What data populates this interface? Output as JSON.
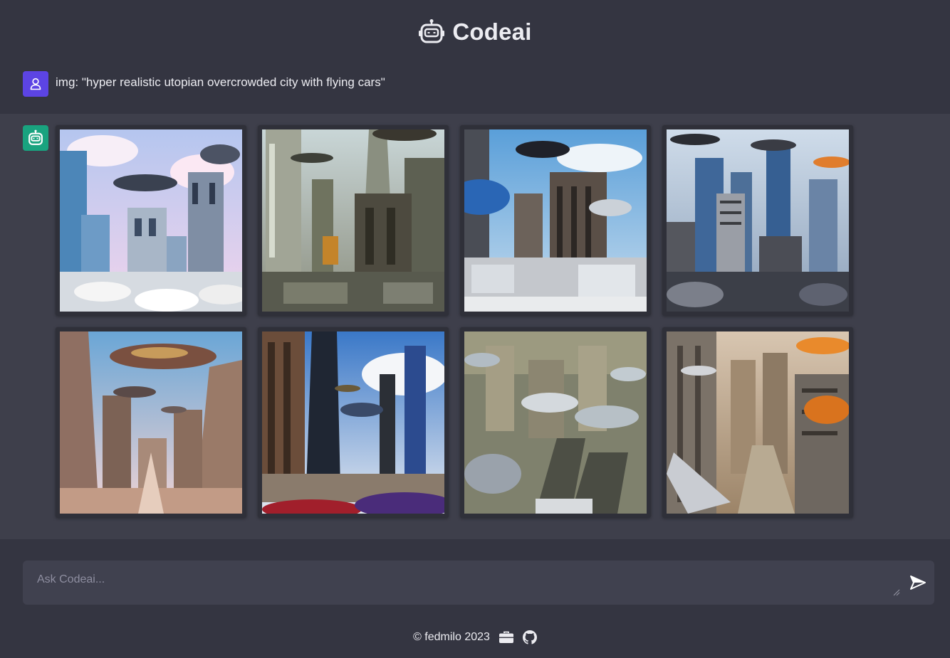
{
  "header": {
    "title": "Codeai",
    "logo_icon": "robot-icon"
  },
  "conversation": {
    "user_message": "img: \"hyper realistic utopian overcrowded city with flying cars\"",
    "user_avatar_icon": "user-icon",
    "bot_avatar_icon": "robot-icon",
    "generated_image_count": 8
  },
  "composer": {
    "placeholder": "Ask Codeai...",
    "send_icon": "send-icon"
  },
  "footer": {
    "copyright": "© fedmilo 2023",
    "portfolio_icon": "briefcase-icon",
    "github_icon": "github-icon"
  },
  "colors": {
    "background": "#343541",
    "bot_row": "#3e3f4b",
    "user_avatar": "#5c44e4",
    "bot_avatar": "#19a37f",
    "input": "#40414f"
  }
}
